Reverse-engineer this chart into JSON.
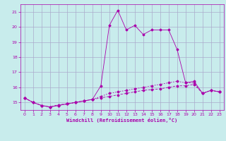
{
  "title": "",
  "xlabel": "Windchill (Refroidissement éolien,°C)",
  "ylabel": "",
  "background_color": "#c8ecec",
  "grid_color": "#aaaacc",
  "line_color": "#aa00aa",
  "x_ticks": [
    0,
    1,
    2,
    3,
    4,
    5,
    6,
    7,
    8,
    9,
    10,
    11,
    12,
    13,
    14,
    15,
    16,
    17,
    18,
    19,
    20,
    21,
    22,
    23
  ],
  "y_ticks": [
    15,
    16,
    17,
    18,
    19,
    20,
    21
  ],
  "xlim": [
    -0.5,
    23.5
  ],
  "ylim": [
    14.5,
    21.5
  ],
  "series1_x": [
    0,
    1,
    2,
    3,
    4,
    5,
    6,
    7,
    8,
    9,
    10,
    11,
    12,
    13,
    14,
    15,
    16,
    17,
    18,
    19,
    20,
    21,
    22,
    23
  ],
  "series1_y": [
    15.3,
    15.0,
    14.8,
    14.7,
    14.8,
    14.9,
    15.0,
    15.1,
    15.2,
    16.1,
    20.1,
    21.1,
    19.8,
    20.1,
    19.5,
    19.8,
    19.8,
    19.8,
    18.5,
    16.3,
    16.4,
    15.6,
    15.8,
    15.7
  ],
  "series2_x": [
    0,
    1,
    2,
    3,
    4,
    5,
    6,
    7,
    8,
    9,
    10,
    11,
    12,
    13,
    14,
    15,
    16,
    17,
    18,
    19,
    20,
    21,
    22,
    23
  ],
  "series2_y": [
    15.3,
    15.0,
    14.8,
    14.7,
    14.85,
    14.9,
    15.0,
    15.1,
    15.2,
    15.3,
    15.4,
    15.5,
    15.6,
    15.7,
    15.8,
    15.85,
    15.9,
    16.0,
    16.1,
    16.1,
    16.2,
    15.6,
    15.8,
    15.7
  ],
  "series3_x": [
    0,
    1,
    2,
    3,
    4,
    5,
    6,
    7,
    8,
    9,
    10,
    11,
    12,
    13,
    14,
    15,
    16,
    17,
    18,
    19,
    20,
    21,
    22,
    23
  ],
  "series3_y": [
    15.3,
    15.0,
    14.8,
    14.7,
    14.8,
    14.9,
    15.0,
    15.1,
    15.2,
    15.4,
    15.6,
    15.7,
    15.8,
    15.9,
    16.0,
    16.1,
    16.2,
    16.3,
    16.4,
    16.3,
    16.3,
    15.6,
    15.8,
    15.7
  ],
  "lw": 0.6,
  "ms": 1.5,
  "xlabel_fontsize": 5.0,
  "tick_fontsize": 4.5
}
